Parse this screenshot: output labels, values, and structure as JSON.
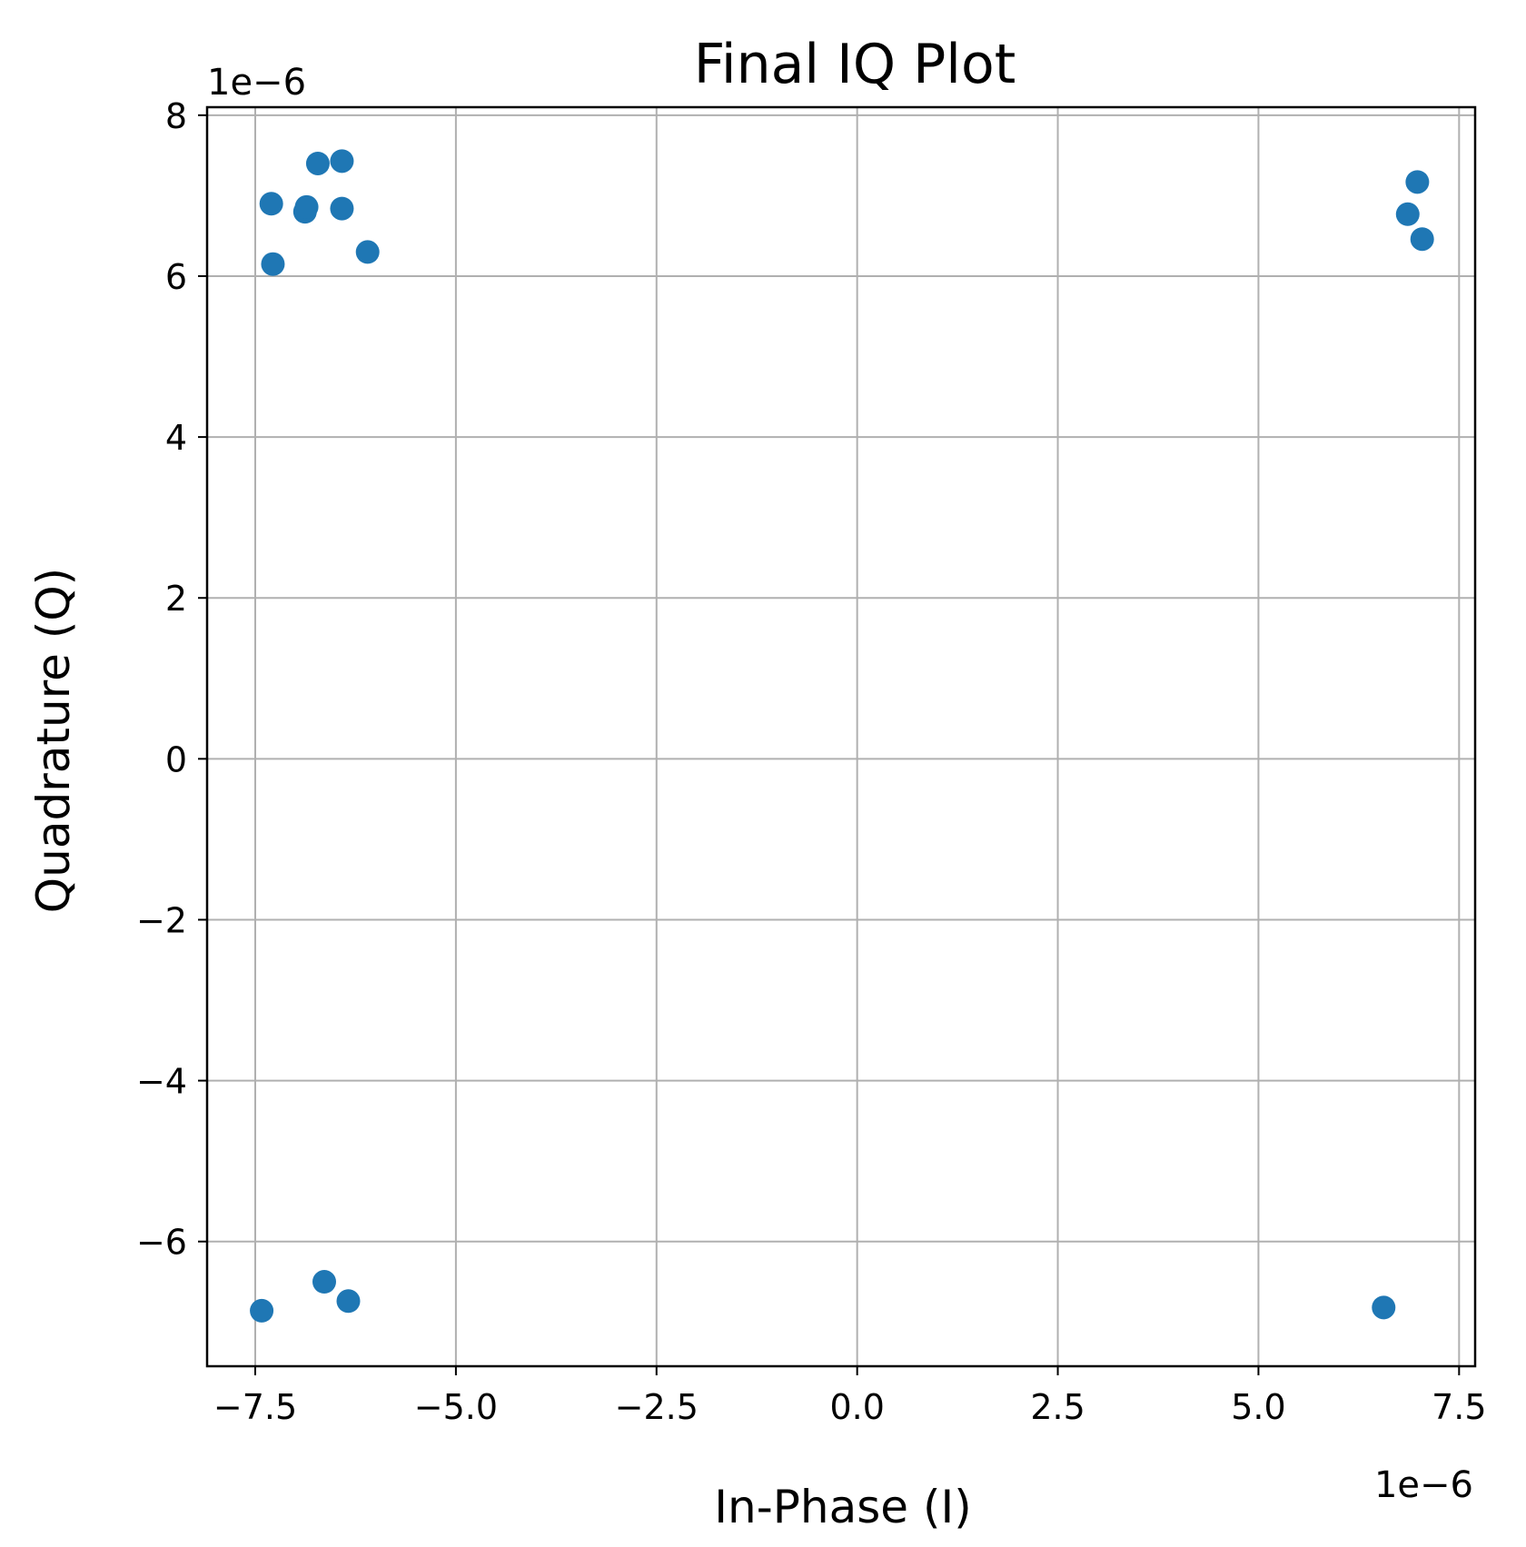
{
  "chart_data": {
    "type": "scatter",
    "title": "Final IQ Plot",
    "xlabel": "In-Phase (I)",
    "ylabel": "Quadrature (Q)",
    "x_offset_label": "1e−6",
    "y_offset_label": "1e−6",
    "xlim": [
      -8.1e-06,
      7.7e-06
    ],
    "ylim": [
      -7.55e-06,
      8.1e-06
    ],
    "xticks": [
      -7.5e-06,
      -5e-06,
      -2.5e-06,
      0,
      2.5e-06,
      5e-06,
      7.5e-06
    ],
    "xtick_labels": [
      "−7.5",
      "−5.0",
      "−2.5",
      "0.0",
      "2.5",
      "5.0",
      "7.5"
    ],
    "yticks": [
      -6e-06,
      -4e-06,
      -2e-06,
      0,
      2e-06,
      4e-06,
      6e-06,
      8e-06
    ],
    "ytick_labels": [
      "−6",
      "−4",
      "−2",
      "0",
      "2",
      "4",
      "6",
      "8"
    ],
    "grid": true,
    "color": "#1f77b4",
    "points": [
      {
        "x": -7.3e-06,
        "y": 6.9e-06
      },
      {
        "x": -7.28e-06,
        "y": 6.15e-06
      },
      {
        "x": -6.88e-06,
        "y": 6.8e-06
      },
      {
        "x": -6.86e-06,
        "y": 6.86e-06
      },
      {
        "x": -6.72e-06,
        "y": 7.4e-06
      },
      {
        "x": -6.42e-06,
        "y": 7.43e-06
      },
      {
        "x": -6.42e-06,
        "y": 6.84e-06
      },
      {
        "x": -6.1e-06,
        "y": 6.3e-06
      },
      {
        "x": 6.98e-06,
        "y": 7.17e-06
      },
      {
        "x": 6.86e-06,
        "y": 6.77e-06
      },
      {
        "x": 7.04e-06,
        "y": 6.46e-06
      },
      {
        "x": -7.42e-06,
        "y": -6.86e-06
      },
      {
        "x": -6.64e-06,
        "y": -6.5e-06
      },
      {
        "x": -6.34e-06,
        "y": -6.74e-06
      },
      {
        "x": 6.56e-06,
        "y": -6.82e-06
      }
    ]
  }
}
